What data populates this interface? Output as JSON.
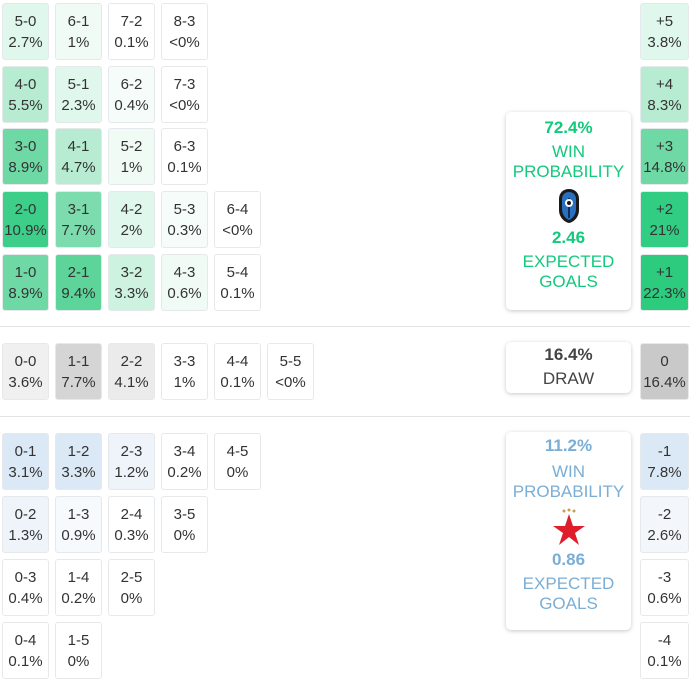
{
  "colors": {
    "home_accent": "#12c97c",
    "away_accent": "#7aaed6",
    "draw_accent": "#444444"
  },
  "home_scores": [
    [
      {
        "score": "5-0",
        "pct": "2.7%",
        "bg": "#dff7ec"
      },
      {
        "score": "6-1",
        "pct": "1%",
        "bg": "#f1fbf6"
      },
      {
        "score": "7-2",
        "pct": "0.1%",
        "bg": "#ffffff"
      },
      {
        "score": "8-3",
        "pct": "<0%",
        "bg": "#ffffff"
      }
    ],
    [
      {
        "score": "4-0",
        "pct": "5.5%",
        "bg": "#b7ecd2"
      },
      {
        "score": "5-1",
        "pct": "2.3%",
        "bg": "#dff7ec"
      },
      {
        "score": "6-2",
        "pct": "0.4%",
        "bg": "#f6fcf9"
      },
      {
        "score": "7-3",
        "pct": "<0%",
        "bg": "#ffffff"
      }
    ],
    [
      {
        "score": "3-0",
        "pct": "8.9%",
        "bg": "#6fd9a6"
      },
      {
        "score": "4-1",
        "pct": "4.7%",
        "bg": "#b7ecd2"
      },
      {
        "score": "5-2",
        "pct": "1%",
        "bg": "#f1fbf6"
      },
      {
        "score": "6-3",
        "pct": "0.1%",
        "bg": "#ffffff"
      }
    ],
    [
      {
        "score": "2-0",
        "pct": "10.9%",
        "bg": "#3dcf8a"
      },
      {
        "score": "3-1",
        "pct": "7.7%",
        "bg": "#7cdcae"
      },
      {
        "score": "4-2",
        "pct": "2%",
        "bg": "#dff7ec"
      },
      {
        "score": "5-3",
        "pct": "0.3%",
        "bg": "#f6fcf9"
      },
      {
        "score": "6-4",
        "pct": "<0%",
        "bg": "#ffffff"
      }
    ],
    [
      {
        "score": "1-0",
        "pct": "8.9%",
        "bg": "#6fd9a6"
      },
      {
        "score": "2-1",
        "pct": "9.4%",
        "bg": "#5cd49a"
      },
      {
        "score": "3-2",
        "pct": "3.3%",
        "bg": "#cdf2e0"
      },
      {
        "score": "4-3",
        "pct": "0.6%",
        "bg": "#f1fbf6"
      },
      {
        "score": "5-4",
        "pct": "0.1%",
        "bg": "#ffffff"
      }
    ]
  ],
  "draw_scores": [
    {
      "score": "0-0",
      "pct": "3.6%",
      "bg": "#f0f0f0"
    },
    {
      "score": "1-1",
      "pct": "7.7%",
      "bg": "#d5d5d5"
    },
    {
      "score": "2-2",
      "pct": "4.1%",
      "bg": "#ebebeb"
    },
    {
      "score": "3-3",
      "pct": "1%",
      "bg": "#ffffff"
    },
    {
      "score": "4-4",
      "pct": "0.1%",
      "bg": "#ffffff"
    },
    {
      "score": "5-5",
      "pct": "<0%",
      "bg": "#ffffff"
    }
  ],
  "away_scores": [
    [
      {
        "score": "0-1",
        "pct": "3.1%",
        "bg": "#dbe9f6"
      },
      {
        "score": "1-2",
        "pct": "3.3%",
        "bg": "#dbe9f6"
      },
      {
        "score": "2-3",
        "pct": "1.2%",
        "bg": "#eef4fa"
      },
      {
        "score": "3-4",
        "pct": "0.2%",
        "bg": "#ffffff"
      },
      {
        "score": "4-5",
        "pct": "0%",
        "bg": "#ffffff"
      }
    ],
    [
      {
        "score": "0-2",
        "pct": "1.3%",
        "bg": "#eef4fa"
      },
      {
        "score": "1-3",
        "pct": "0.9%",
        "bg": "#f7fafd"
      },
      {
        "score": "2-4",
        "pct": "0.3%",
        "bg": "#ffffff"
      },
      {
        "score": "3-5",
        "pct": "0%",
        "bg": "#ffffff"
      }
    ],
    [
      {
        "score": "0-3",
        "pct": "0.4%",
        "bg": "#ffffff"
      },
      {
        "score": "1-4",
        "pct": "0.2%",
        "bg": "#ffffff"
      },
      {
        "score": "2-5",
        "pct": "0%",
        "bg": "#ffffff"
      }
    ],
    [
      {
        "score": "0-4",
        "pct": "0.1%",
        "bg": "#ffffff"
      },
      {
        "score": "1-5",
        "pct": "0%",
        "bg": "#ffffff"
      }
    ]
  ],
  "home_goal_diff": [
    {
      "label": "+5",
      "pct": "3.8%",
      "bg": "#dff7ec"
    },
    {
      "label": "+4",
      "pct": "8.3%",
      "bg": "#b7ecd2"
    },
    {
      "label": "+3",
      "pct": "14.8%",
      "bg": "#6fd9a6"
    },
    {
      "label": "+2",
      "pct": "21%",
      "bg": "#31cd82"
    },
    {
      "label": "+1",
      "pct": "22.3%",
      "bg": "#2ccb7e"
    }
  ],
  "draw_goal_diff": {
    "label": "0",
    "pct": "16.4%",
    "bg": "#c9c9c9"
  },
  "away_goal_diff": [
    {
      "label": "-1",
      "pct": "7.8%",
      "bg": "#dbe9f6"
    },
    {
      "label": "-2",
      "pct": "2.6%",
      "bg": "#f3f7fb"
    },
    {
      "label": "-3",
      "pct": "0.6%",
      "bg": "#ffffff"
    },
    {
      "label": "-4",
      "pct": "0.1%",
      "bg": "#ffffff"
    }
  ],
  "home_card": {
    "win_pct": "72.4%",
    "win_label_1": "WIN",
    "win_label_2": "PROBABILITY",
    "logo_icon": "atalanta-crest-icon",
    "xg": "2.46",
    "xg_label_1": "EXPECTED",
    "xg_label_2": "GOALS"
  },
  "draw_card": {
    "pct": "16.4%",
    "label": "DRAW"
  },
  "away_card": {
    "win_pct": "11.2%",
    "win_label_1": "WIN",
    "win_label_2": "PROBABILITY",
    "logo_icon": "slavia-red-star-icon",
    "xg": "0.86",
    "xg_label_1": "EXPECTED",
    "xg_label_2": "GOALS"
  }
}
